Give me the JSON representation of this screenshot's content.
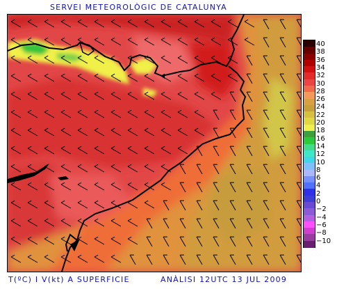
{
  "header": {
    "title": "SERVEI METEOROLÒGIC DE CATALUNYA"
  },
  "footer": {
    "variable": "T(ºC) I V(kt) A SUPERFICIE",
    "analysis": "ANÀLISI 12UTC 13 JUL 2009"
  },
  "legend": {
    "colors": [
      "#2a0000",
      "#660000",
      "#8b0000",
      "#b00000",
      "#d21010",
      "#e52a2a",
      "#ea4545",
      "#ef6a4a",
      "#f39a58",
      "#d7a040",
      "#c8a03a",
      "#d7c040",
      "#e0d840",
      "#f0f050",
      "#3ca03c",
      "#2aca3a",
      "#40dc8c",
      "#40e6c8",
      "#40d8e8",
      "#80c0ff",
      "#aab8ff",
      "#7890ff",
      "#5070ff",
      "#3030e8",
      "#3e3ed7",
      "#6a4ad2",
      "#8a5ad7",
      "#b060e0",
      "#ff50ff",
      "#d040d0",
      "#9a3ca0",
      "#6a1e70"
    ],
    "labels": [
      "40",
      "38",
      "36",
      "34",
      "32",
      "30",
      "28",
      "26",
      "24",
      "22",
      "20",
      "18",
      "16",
      "14",
      "12",
      "10",
      "8",
      "6",
      "4",
      "2",
      "0",
      "−2",
      "−4",
      "−6",
      "−8",
      "−10"
    ]
  }
}
